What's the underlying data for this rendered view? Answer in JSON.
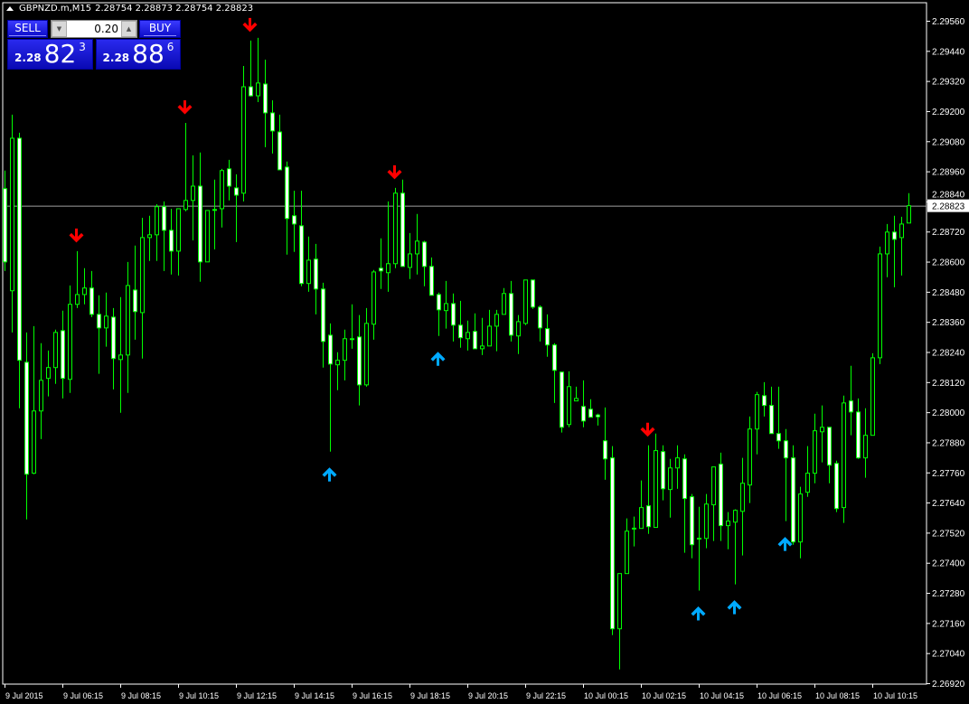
{
  "header": {
    "symbol": "GBPNZD.m,M15",
    "ohlc": "2.28754 2.28873 2.28754 2.28823"
  },
  "trade_panel": {
    "sell_label": "SELL",
    "buy_label": "BUY",
    "lot_value": "0.20",
    "sell_price": {
      "prefix": "2.28",
      "big": "82",
      "sup": "3"
    },
    "buy_price": {
      "prefix": "2.28",
      "big": "88",
      "sup": "6"
    }
  },
  "colors": {
    "background": "#000000",
    "candle_outline": "#00ff00",
    "bear_body": "#ffffff",
    "bull_body": "#000000",
    "sell_arrow": "#ff0000",
    "buy_arrow": "#00aaff",
    "grid_axis": "#ffffff",
    "price_line": "#a0a0a0"
  },
  "chart_data": {
    "type": "candlestick",
    "current_price": "2.28823",
    "ylim": [
      2.2692,
      2.2956
    ],
    "price_ticks": [
      "2.29560",
      "2.29440",
      "2.29320",
      "2.29200",
      "2.29080",
      "2.28960",
      "2.28840",
      "2.28720",
      "2.28600",
      "2.28480",
      "2.28360",
      "2.28240",
      "2.28120",
      "2.28000",
      "2.27880",
      "2.27760",
      "2.27640",
      "2.27520",
      "2.27400",
      "2.27280",
      "2.27160",
      "2.27040",
      "2.26920"
    ],
    "time_ticks": [
      {
        "bar": 0,
        "label": "9 Jul 2015"
      },
      {
        "bar": 8,
        "label": "9 Jul 06:15"
      },
      {
        "bar": 16,
        "label": "9 Jul 08:15"
      },
      {
        "bar": 24,
        "label": "9 Jul 10:15"
      },
      {
        "bar": 32,
        "label": "9 Jul 12:15"
      },
      {
        "bar": 40,
        "label": "9 Jul 14:15"
      },
      {
        "bar": 48,
        "label": "9 Jul 16:15"
      },
      {
        "bar": 56,
        "label": "9 Jul 18:15"
      },
      {
        "bar": 64,
        "label": "9 Jul 20:15"
      },
      {
        "bar": 72,
        "label": "9 Jul 22:15"
      },
      {
        "bar": 80,
        "label": "10 Jul 00:15"
      },
      {
        "bar": 88,
        "label": "10 Jul 02:15"
      },
      {
        "bar": 96,
        "label": "10 Jul 04:15"
      },
      {
        "bar": 104,
        "label": "10 Jul 06:15"
      },
      {
        "bar": 112,
        "label": "10 Jul 08:15"
      },
      {
        "bar": 120,
        "label": "10 Jul 10:15"
      }
    ],
    "ohlc_fields": [
      "open",
      "high",
      "low",
      "close"
    ],
    "candles": [
      [
        2.28891,
        2.28963,
        2.28563,
        2.28599
      ],
      [
        2.28484,
        2.29186,
        2.28318,
        2.29092
      ],
      [
        2.29092,
        2.29114,
        2.28016,
        2.28207
      ],
      [
        2.28199,
        2.28318,
        2.27573,
        2.27753
      ],
      [
        2.27757,
        2.28343,
        2.27753,
        2.28005
      ],
      [
        2.28005,
        2.28275,
        2.27893,
        2.28127
      ],
      [
        2.28135,
        2.28246,
        2.28063,
        2.28178
      ],
      [
        2.28178,
        2.28329,
        2.28113,
        2.28318
      ],
      [
        2.28325,
        2.28405,
        2.28055,
        2.28135
      ],
      [
        2.28131,
        2.28505,
        2.28077,
        2.2843
      ],
      [
        2.2843,
        2.28642,
        2.28415,
        2.28469
      ],
      [
        2.28469,
        2.28574,
        2.2843,
        2.28495
      ],
      [
        2.28495,
        2.28563,
        2.28379,
        2.2839
      ],
      [
        2.2839,
        2.28466,
        2.28153,
        2.28336
      ],
      [
        2.28336,
        2.28477,
        2.28261,
        2.28383
      ],
      [
        2.28379,
        2.28415,
        2.28091,
        2.28214
      ],
      [
        2.2821,
        2.28459,
        2.27998,
        2.28228
      ],
      [
        2.28228,
        2.28599,
        2.28077,
        2.28505
      ],
      [
        2.28487,
        2.28664,
        2.28289,
        2.28401
      ],
      [
        2.28397,
        2.28775,
        2.28214,
        2.28696
      ],
      [
        2.28696,
        2.28783,
        2.28603,
        2.28707
      ],
      [
        2.28707,
        2.28829,
        2.28603,
        2.28819
      ],
      [
        2.28819,
        2.2884,
        2.28563,
        2.28725
      ],
      [
        2.28725,
        2.28811,
        2.28549,
        2.28642
      ],
      [
        2.28642,
        2.28811,
        2.28545,
        2.28811
      ],
      [
        2.28808,
        2.29153,
        2.28801,
        2.28844
      ],
      [
        2.28844,
        2.29024,
        2.28685,
        2.28901
      ],
      [
        2.28901,
        2.29035,
        2.2852,
        2.28599
      ],
      [
        2.28599,
        2.28804,
        2.28599,
        2.28804
      ],
      [
        2.28808,
        2.28927,
        2.28649,
        2.28806
      ],
      [
        2.28811,
        2.2897,
        2.28736,
        2.28963
      ],
      [
        2.2897,
        2.29006,
        2.28844,
        2.28901
      ],
      [
        2.28894,
        2.28948,
        2.28678,
        2.28865
      ],
      [
        2.28873,
        2.2938,
        2.2884,
        2.29297
      ],
      [
        2.29297,
        2.29481,
        2.29258,
        2.29261
      ],
      [
        2.29261,
        2.29492,
        2.29236,
        2.29312
      ],
      [
        2.29308,
        2.29405,
        2.29056,
        2.29193
      ],
      [
        2.29193,
        2.29243,
        2.29031,
        2.29121
      ],
      [
        2.29117,
        2.29186,
        2.28966,
        2.28966
      ],
      [
        2.28977,
        2.28999,
        2.28628,
        2.28772
      ],
      [
        2.28783,
        2.28883,
        2.28639,
        2.2875
      ],
      [
        2.28743,
        2.28883,
        2.28502,
        2.28513
      ],
      [
        2.28513,
        2.287,
        2.2848,
        2.28606
      ],
      [
        2.2861,
        2.28671,
        2.2839,
        2.28491
      ],
      [
        2.28491,
        2.28516,
        2.28178,
        2.28282
      ],
      [
        2.28307,
        2.28354,
        2.27843,
        2.28192
      ],
      [
        2.28189,
        2.28239,
        2.28088,
        2.28207
      ],
      [
        2.28207,
        2.28329,
        2.28127,
        2.28293
      ],
      [
        2.28293,
        2.2843,
        2.28253,
        2.28291
      ],
      [
        2.283,
        2.28387,
        2.28027,
        2.28109
      ],
      [
        2.28109,
        2.28415,
        2.28102,
        2.28354
      ],
      [
        2.28351,
        2.28567,
        2.28289,
        2.28559
      ],
      [
        2.28574,
        2.28693,
        2.28491,
        2.28563
      ],
      [
        2.28556,
        2.2884,
        2.2848,
        2.28592
      ],
      [
        2.28592,
        2.28894,
        2.28574,
        2.28873
      ],
      [
        2.28873,
        2.28927,
        2.28581,
        2.28581
      ],
      [
        2.28577,
        2.28714,
        2.28531,
        2.28631
      ],
      [
        2.28631,
        2.2879,
        2.28549,
        2.28682
      ],
      [
        2.28678,
        2.28683,
        2.28502,
        2.28581
      ],
      [
        2.28581,
        2.28617,
        2.28466,
        2.28466
      ],
      [
        2.28469,
        2.28477,
        2.28304,
        2.28408
      ],
      [
        2.28405,
        2.28523,
        2.28333,
        2.28433
      ],
      [
        2.28433,
        2.28473,
        2.28282,
        2.28347
      ],
      [
        2.28347,
        2.28444,
        2.28257,
        2.28297
      ],
      [
        2.28293,
        2.28365,
        2.28246,
        2.28318
      ],
      [
        2.28322,
        2.28394,
        2.28253,
        2.28253
      ],
      [
        2.28253,
        2.28376,
        2.28228,
        2.28264
      ],
      [
        2.28264,
        2.28408,
        2.28264,
        2.28343
      ],
      [
        2.28343,
        2.28408,
        2.28243,
        2.2839
      ],
      [
        2.2839,
        2.28495,
        2.2839,
        2.28473
      ],
      [
        2.28473,
        2.28523,
        2.28282,
        2.28307
      ],
      [
        2.28304,
        2.28387,
        2.28232,
        2.28361
      ],
      [
        2.28354,
        2.28527,
        2.28347,
        2.28527
      ],
      [
        2.28527,
        2.28528,
        2.28412,
        2.28419
      ],
      [
        2.28419,
        2.28426,
        2.28282,
        2.28336
      ],
      [
        2.28333,
        2.2839,
        2.28221,
        2.28268
      ],
      [
        2.28268,
        2.28275,
        2.28037,
        2.28167
      ],
      [
        2.2816,
        2.28161,
        2.27919,
        2.2794
      ],
      [
        2.27951,
        2.28163,
        2.2794,
        2.28102
      ],
      [
        2.28045,
        2.28102,
        2.28045,
        2.28055
      ],
      [
        2.28023,
        2.28127,
        2.2794,
        2.27965
      ],
      [
        2.28012,
        2.28052,
        2.2798,
        2.2798
      ],
      [
        2.27989,
        2.27994,
        2.27947,
        2.27982
      ],
      [
        2.27886,
        2.28019,
        2.27731,
        2.27814
      ],
      [
        2.27818,
        2.27865,
        2.27112,
        2.27137
      ],
      [
        2.27137,
        2.27357,
        2.26975,
        2.27357
      ],
      [
        2.27357,
        2.27577,
        2.27357,
        2.27526
      ],
      [
        2.27537,
        2.27584,
        2.27465,
        2.27538
      ],
      [
        2.27537,
        2.27728,
        2.27537,
        2.2762
      ],
      [
        2.27627,
        2.27868,
        2.27515,
        2.27544
      ],
      [
        2.27541,
        2.27915,
        2.27541,
        2.27847
      ],
      [
        2.27843,
        2.27868,
        2.27649,
        2.27695
      ],
      [
        2.27692,
        2.27814,
        2.2758,
        2.27778
      ],
      [
        2.27778,
        2.27868,
        2.27695,
        2.27818
      ],
      [
        2.27814,
        2.27832,
        2.2744,
        2.27656
      ],
      [
        2.27663,
        2.27674,
        2.27418,
        2.27472
      ],
      [
        2.27497,
        2.27623,
        2.27289,
        2.27498
      ],
      [
        2.27497,
        2.27674,
        2.27458,
        2.27634
      ],
      [
        2.27631,
        2.27782,
        2.27487,
        2.27782
      ],
      [
        2.27793,
        2.27839,
        2.27487,
        2.27548
      ],
      [
        2.27548,
        2.27602,
        2.27454,
        2.27566
      ],
      [
        2.27562,
        2.27613,
        2.27314,
        2.27609
      ],
      [
        2.27605,
        2.27818,
        2.27429,
        2.27717
      ],
      [
        2.2771,
        2.27983,
        2.27638,
        2.27933
      ],
      [
        2.27933,
        2.28081,
        2.27832,
        2.2807
      ],
      [
        2.28066,
        2.2812,
        2.27983,
        2.28027
      ],
      [
        2.28027,
        2.28102,
        2.27915,
        2.27915
      ],
      [
        2.27915,
        2.28102,
        2.27854,
        2.27886
      ],
      [
        2.27886,
        2.27933,
        2.27566,
        2.27818
      ],
      [
        2.27818,
        2.27868,
        2.27472,
        2.27483
      ],
      [
        2.27483,
        2.27703,
        2.27418,
        2.27674
      ],
      [
        2.27681,
        2.27865,
        2.27663,
        2.27757
      ],
      [
        2.27757,
        2.27994,
        2.27717,
        2.27926
      ],
      [
        2.27922,
        2.28027,
        2.278,
        2.2794
      ],
      [
        2.2794,
        2.27941,
        2.27717,
        2.27789
      ],
      [
        2.27796,
        2.27807,
        2.27602,
        2.27616
      ],
      [
        2.2762,
        2.28066,
        2.27559,
        2.28037
      ],
      [
        2.28045,
        2.28185,
        2.27908,
        2.28001
      ],
      [
        2.28001,
        2.28055,
        2.27814,
        2.27818
      ],
      [
        2.27818,
        2.28016,
        2.27739,
        2.27908
      ],
      [
        2.27908,
        2.28235,
        2.27908,
        2.28217
      ],
      [
        2.28217,
        2.2866,
        2.28192,
        2.28631
      ],
      [
        2.28631,
        2.2875,
        2.28538,
        2.28718
      ],
      [
        2.28718,
        2.28783,
        2.28498,
        2.28689
      ],
      [
        2.28696,
        2.28779,
        2.28545,
        2.2875
      ],
      [
        2.28754,
        2.28873,
        2.28754,
        2.28823
      ]
    ],
    "signals": [
      {
        "bar": 10,
        "type": "sell",
        "icon": "arrow-down-icon"
      },
      {
        "bar": 25,
        "type": "sell",
        "icon": "arrow-down-icon"
      },
      {
        "bar": 34,
        "type": "sell",
        "icon": "arrow-down-icon"
      },
      {
        "bar": 54,
        "type": "sell",
        "icon": "arrow-down-icon"
      },
      {
        "bar": 89,
        "type": "sell",
        "icon": "arrow-down-icon"
      },
      {
        "bar": 45,
        "type": "buy",
        "icon": "arrow-up-icon"
      },
      {
        "bar": 60,
        "type": "buy",
        "icon": "arrow-up-icon"
      },
      {
        "bar": 96,
        "type": "buy",
        "icon": "arrow-up-icon"
      },
      {
        "bar": 101,
        "type": "buy",
        "icon": "arrow-up-icon"
      },
      {
        "bar": 108,
        "type": "buy",
        "icon": "arrow-up-icon"
      }
    ]
  }
}
